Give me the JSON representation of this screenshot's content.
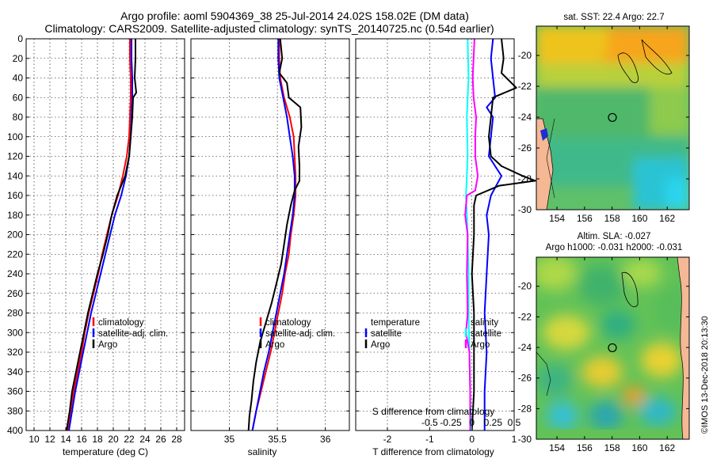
{
  "title": {
    "line1": "Argo profile: aoml 5904369_38 25-Jul-2014 24.02S 158.02E (DM data)",
    "line2": "Climatology: CARS2009. Satellite-adjusted climatology: synTS_20140725.nc (0.54d earlier)"
  },
  "colors": {
    "climatology": "#ff0000",
    "satellite": "#0000ff",
    "argo": "#000000",
    "sal_satellite": "#00ffff",
    "sal_argo": "#ff00ff",
    "land": "#f5b895"
  },
  "depth_ticks": [
    "0",
    "20",
    "40",
    "60",
    "80",
    "100",
    "120",
    "140",
    "160",
    "180",
    "200",
    "220",
    "240",
    "260",
    "280",
    "300",
    "320",
    "340",
    "360",
    "380",
    "400"
  ],
  "legend": {
    "climatology": "climatology",
    "satellite_adj": "satellite-adj. clim.",
    "argo": "Argo"
  },
  "diff_legend": {
    "temperature": "temperature",
    "salinity": "salinity",
    "satellite": "satellite",
    "argo": "Argo"
  },
  "chart_data": [
    {
      "type": "line",
      "name": "temperature",
      "xlabel": "temperature (deg C)",
      "ylabel": "depth",
      "xlim": [
        9,
        29
      ],
      "ylim": [
        0,
        400
      ],
      "xticks": [
        "10",
        "12",
        "14",
        "16",
        "18",
        "20",
        "22",
        "24",
        "26",
        "28"
      ],
      "series": [
        {
          "name": "climatology",
          "depth": [
            0,
            20,
            40,
            60,
            80,
            100,
            120,
            140,
            160,
            180,
            200,
            220,
            240,
            260,
            280,
            300,
            320,
            340,
            360,
            380,
            400
          ],
          "values": [
            22.1,
            22.1,
            22.2,
            22.2,
            22.1,
            22.0,
            21.7,
            21.2,
            20.6,
            19.8,
            19.2,
            18.6,
            18.1,
            17.5,
            16.9,
            16.4,
            16.0,
            15.5,
            15.0,
            14.6,
            14.2
          ]
        },
        {
          "name": "satellite-adj. clim.",
          "depth": [
            0,
            20,
            40,
            60,
            80,
            100,
            120,
            140,
            160,
            180,
            200,
            220,
            240,
            260,
            280,
            300,
            320,
            340,
            360,
            380,
            400
          ],
          "values": [
            22.3,
            22.3,
            22.4,
            22.4,
            22.3,
            22.2,
            22.0,
            21.6,
            21.0,
            20.2,
            19.6,
            19.0,
            18.4,
            17.8,
            17.2,
            16.7,
            16.2,
            15.7,
            15.2,
            14.8,
            14.4
          ]
        },
        {
          "name": "Argo",
          "depth": [
            0,
            20,
            40,
            55,
            60,
            80,
            100,
            120,
            140,
            150,
            160,
            180,
            200,
            220,
            240,
            260,
            280,
            300,
            320,
            340,
            360,
            380,
            400
          ],
          "values": [
            22.8,
            22.8,
            22.7,
            22.9,
            22.5,
            22.4,
            22.2,
            22.0,
            21.5,
            21.0,
            20.5,
            19.8,
            19.3,
            18.7,
            18.0,
            17.4,
            16.8,
            16.3,
            15.8,
            15.3,
            14.8,
            14.5,
            14.1
          ]
        }
      ]
    },
    {
      "type": "line",
      "name": "salinity",
      "xlabel": "salinity",
      "ylabel": "depth",
      "xlim": [
        34.6,
        36.25
      ],
      "ylim": [
        0,
        400
      ],
      "xticks": [
        "35",
        "35.5",
        "36"
      ],
      "series": [
        {
          "name": "climatology",
          "depth": [
            0,
            20,
            40,
            60,
            80,
            100,
            120,
            140,
            160,
            180,
            200,
            220,
            240,
            260,
            280,
            300,
            320,
            340,
            360,
            380,
            400
          ],
          "values": [
            35.52,
            35.52,
            35.53,
            35.57,
            35.63,
            35.67,
            35.68,
            35.69,
            35.69,
            35.67,
            35.64,
            35.62,
            35.58,
            35.55,
            35.51,
            35.47,
            35.43,
            35.38,
            35.33,
            35.28,
            35.24
          ]
        },
        {
          "name": "satellite-adj. clim.",
          "depth": [
            0,
            20,
            40,
            60,
            80,
            100,
            120,
            140,
            160,
            180,
            200,
            220,
            240,
            260,
            280,
            300,
            320,
            340,
            360,
            380,
            400
          ],
          "values": [
            35.51,
            35.51,
            35.52,
            35.56,
            35.6,
            35.63,
            35.66,
            35.68,
            35.68,
            35.66,
            35.63,
            35.6,
            35.57,
            35.53,
            35.49,
            35.45,
            35.41,
            35.36,
            35.32,
            35.28,
            35.24
          ]
        },
        {
          "name": "Argo",
          "depth": [
            0,
            20,
            35,
            45,
            60,
            70,
            90,
            110,
            130,
            145,
            155,
            170,
            190,
            210,
            230,
            250,
            270,
            290,
            310,
            330,
            350,
            370,
            385,
            400
          ],
          "values": [
            35.53,
            35.55,
            35.52,
            35.6,
            35.62,
            35.74,
            35.75,
            35.72,
            35.73,
            35.73,
            35.68,
            35.64,
            35.6,
            35.57,
            35.54,
            35.49,
            35.44,
            35.38,
            35.32,
            35.28,
            35.25,
            35.23,
            35.21,
            35.2
          ]
        }
      ]
    },
    {
      "type": "line",
      "name": "difference from climatology",
      "xlabel": "T difference from climatology",
      "xlabel_top": "S difference from climatology",
      "ylabel": "depth",
      "xlim": [
        -2.75,
        1.0
      ],
      "ylim": [
        0,
        400
      ],
      "xticks": [
        "-2",
        "-1",
        "0",
        "1"
      ],
      "xticks_top": [
        "-0.5",
        "-0.25",
        "0",
        "0.25",
        "0.5"
      ],
      "series": [
        {
          "name": "temperature satellite",
          "depth": [
            0,
            20,
            40,
            60,
            70,
            80,
            100,
            120,
            140,
            160,
            180,
            200,
            240,
            280,
            320,
            360,
            400
          ],
          "values": [
            0.5,
            0.45,
            0.5,
            0.55,
            0.35,
            0.5,
            0.45,
            0.4,
            0.7,
            0.45,
            0.35,
            0.4,
            0.35,
            0.3,
            0.35,
            0.3,
            0.3
          ]
        },
        {
          "name": "temperature Argo",
          "depth": [
            0,
            20,
            35,
            50,
            60,
            80,
            100,
            120,
            130,
            140,
            145,
            150,
            160,
            170,
            200,
            240,
            280,
            320,
            360,
            400
          ],
          "values": [
            0.7,
            0.75,
            0.7,
            1.05,
            0.5,
            0.45,
            0.4,
            0.45,
            0.7,
            1.2,
            1.5,
            0.65,
            0.1,
            0.05,
            0.05,
            0.0,
            0.05,
            0.05,
            0.05,
            0.0
          ]
        },
        {
          "name": "salinity satellite",
          "depth": [
            0,
            40,
            80,
            120,
            160,
            200,
            240,
            280,
            320,
            360,
            400
          ],
          "values": [
            -0.05,
            -0.04,
            -0.06,
            -0.05,
            -0.07,
            -0.05,
            -0.04,
            -0.04,
            -0.03,
            -0.02,
            -0.01
          ]
        },
        {
          "name": "salinity Argo",
          "depth": [
            0,
            20,
            40,
            60,
            80,
            100,
            120,
            140,
            155,
            160,
            180,
            200,
            240,
            280,
            300,
            320,
            360,
            400
          ],
          "values": [
            0.03,
            0.02,
            0.01,
            0.02,
            0.05,
            0.04,
            0.04,
            0.07,
            0.04,
            -0.06,
            -0.08,
            -0.05,
            -0.06,
            -0.05,
            -0.07,
            -0.03,
            -0.02,
            -0.02
          ]
        }
      ]
    },
    {
      "type": "heatmap",
      "name": "sst map",
      "title": "sat. SST: 22.4 Argo: 22.7",
      "xticks": [
        "154",
        "156",
        "158",
        "160",
        "162"
      ],
      "yticks": [
        "-20",
        "-22",
        "-24",
        "-26",
        "-28",
        "-30"
      ],
      "marker": {
        "lon": 158.02,
        "lat": -24.02
      }
    },
    {
      "type": "heatmap",
      "name": "sla map",
      "title": "Altim. SLA: -0.027",
      "subtitle": "Argo h1000: -0.031 h2000: -0.031",
      "xticks": [
        "154",
        "156",
        "158",
        "160",
        "162"
      ],
      "yticks": [
        "-20",
        "-22",
        "-24",
        "-26",
        "-28",
        "-30"
      ],
      "marker": {
        "lon": 158.02,
        "lat": -24.02
      }
    }
  ],
  "stamp": "©IMOS 13-Dec-2018 20:13:30"
}
